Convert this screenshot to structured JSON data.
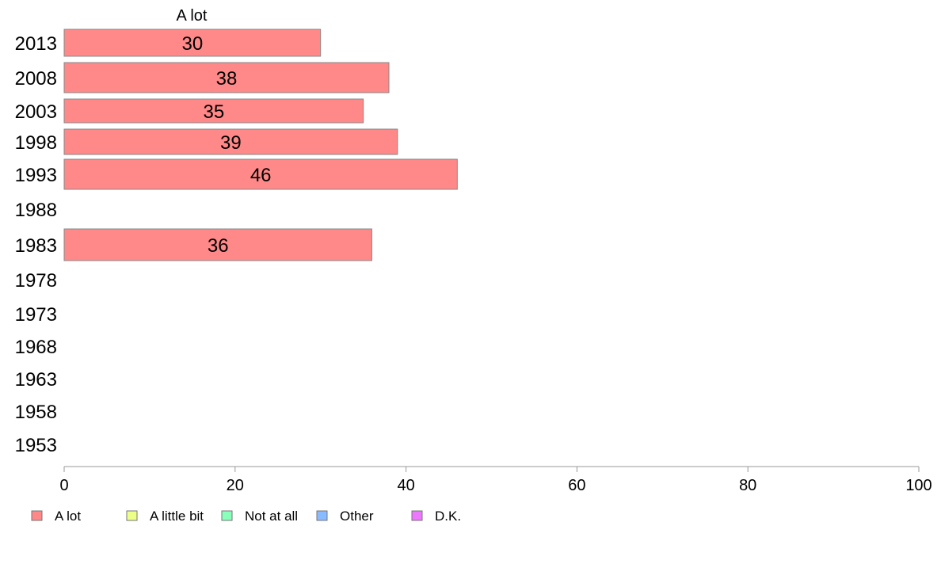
{
  "chart_data": {
    "type": "bar",
    "orientation": "horizontal",
    "stacked": true,
    "column_header": "A lot",
    "categories": [
      "2013",
      "2008",
      "2003",
      "1998",
      "1993",
      "1988",
      "1983",
      "1978",
      "1973",
      "1968",
      "1963",
      "1958",
      "1953"
    ],
    "series": [
      {
        "name": "A lot",
        "color": "#ff8888",
        "values": [
          30,
          38,
          35,
          39,
          46,
          null,
          36,
          null,
          null,
          null,
          null,
          null,
          null
        ]
      },
      {
        "name": "A little bit",
        "color": "#eeff88",
        "values": [
          null,
          null,
          null,
          null,
          null,
          null,
          null,
          null,
          null,
          null,
          null,
          null,
          null
        ]
      },
      {
        "name": "Not at all",
        "color": "#88ffbb",
        "values": [
          null,
          null,
          null,
          null,
          null,
          null,
          null,
          null,
          null,
          null,
          null,
          null,
          null
        ]
      },
      {
        "name": "Other",
        "color": "#88bbff",
        "values": [
          null,
          null,
          null,
          null,
          null,
          null,
          null,
          null,
          null,
          null,
          null,
          null,
          null
        ]
      },
      {
        "name": "D.K.",
        "color": "#ee77ff",
        "values": [
          null,
          null,
          null,
          null,
          null,
          null,
          null,
          null,
          null,
          null,
          null,
          null,
          null
        ]
      }
    ],
    "xlim": [
      0,
      100
    ],
    "xticks": [
      0,
      20,
      40,
      60,
      80,
      100
    ],
    "grid": false,
    "legend_position": "bottom-left",
    "title": "",
    "xlabel": "",
    "ylabel": ""
  }
}
